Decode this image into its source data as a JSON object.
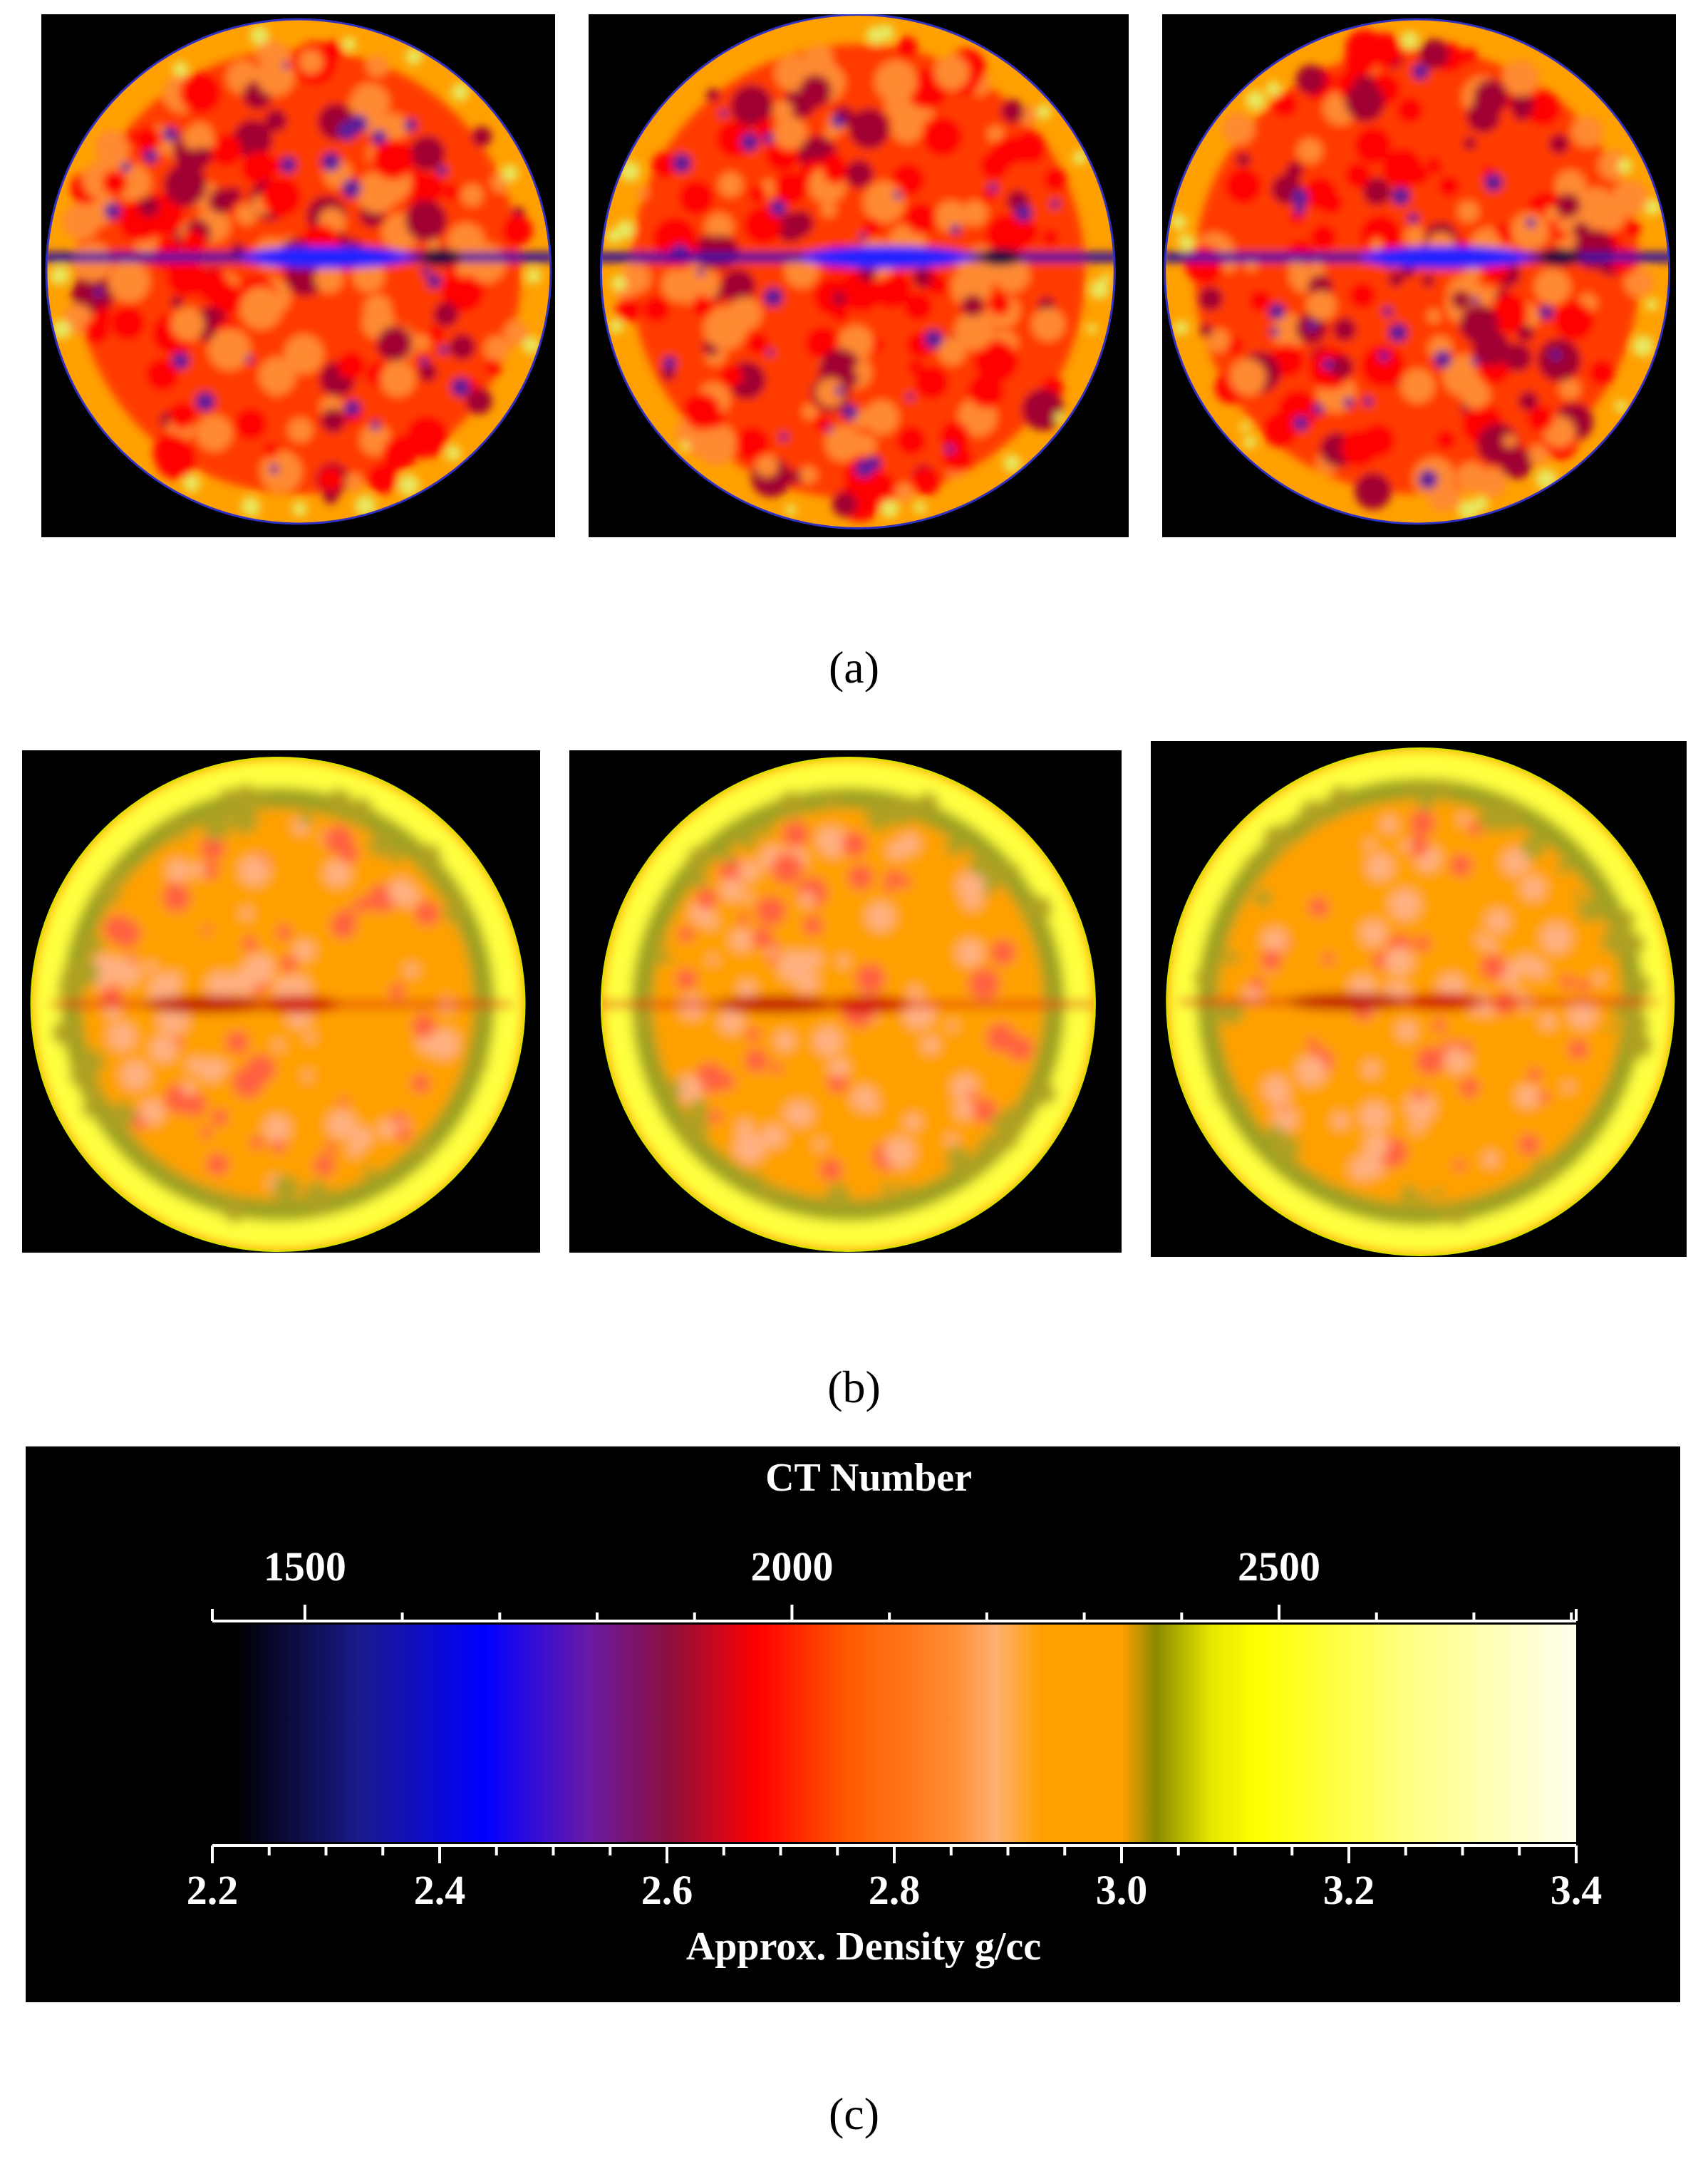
{
  "captions": {
    "a": "(a)",
    "b": "(b)",
    "c": "(c)"
  },
  "panels_a": [
    {
      "name": "scan-a1",
      "style": "fractured"
    },
    {
      "name": "scan-a2",
      "style": "fractured"
    },
    {
      "name": "scan-a3",
      "style": "fractured"
    }
  ],
  "panels_b": [
    {
      "name": "scan-b1",
      "style": "healed"
    },
    {
      "name": "scan-b2",
      "style": "healed"
    },
    {
      "name": "scan-b3",
      "style": "healed"
    }
  ],
  "colorbar": {
    "top_title": "CT Number",
    "top_ticks": [
      "1500",
      "2000",
      "2500"
    ],
    "top_tick_values": [
      1500,
      2000,
      2500
    ],
    "top_range": [
      1405,
      2805
    ],
    "bottom_title": "Approx. Density g/cc",
    "bottom_ticks": [
      "2.2",
      "2.4",
      "2.6",
      "2.8",
      "3.0",
      "3.2",
      "3.4"
    ],
    "bottom_tick_values": [
      2.2,
      2.4,
      2.6,
      2.8,
      3.0,
      3.2,
      3.4
    ],
    "bottom_range": [
      2.2,
      3.4
    ],
    "gradient_stops": [
      {
        "value": 2.22,
        "color": "#000000"
      },
      {
        "value": 2.33,
        "color": "#1a1a8c"
      },
      {
        "value": 2.44,
        "color": "#0000ff"
      },
      {
        "value": 2.53,
        "color": "#6a1aa8"
      },
      {
        "value": 2.6,
        "color": "#8a1040"
      },
      {
        "value": 2.68,
        "color": "#ff0000"
      },
      {
        "value": 2.76,
        "color": "#ff5a00"
      },
      {
        "value": 2.85,
        "color": "#ff8c30"
      },
      {
        "value": 2.89,
        "color": "#ffb070"
      },
      {
        "value": 2.93,
        "color": "#ffa000"
      },
      {
        "value": 3.0,
        "color": "#ffa000"
      },
      {
        "value": 3.03,
        "color": "#8a8a00"
      },
      {
        "value": 3.08,
        "color": "#e8e800"
      },
      {
        "value": 3.12,
        "color": "#ffff00"
      },
      {
        "value": 3.25,
        "color": "#ffff80"
      },
      {
        "value": 3.4,
        "color": "#ffffee"
      }
    ]
  }
}
